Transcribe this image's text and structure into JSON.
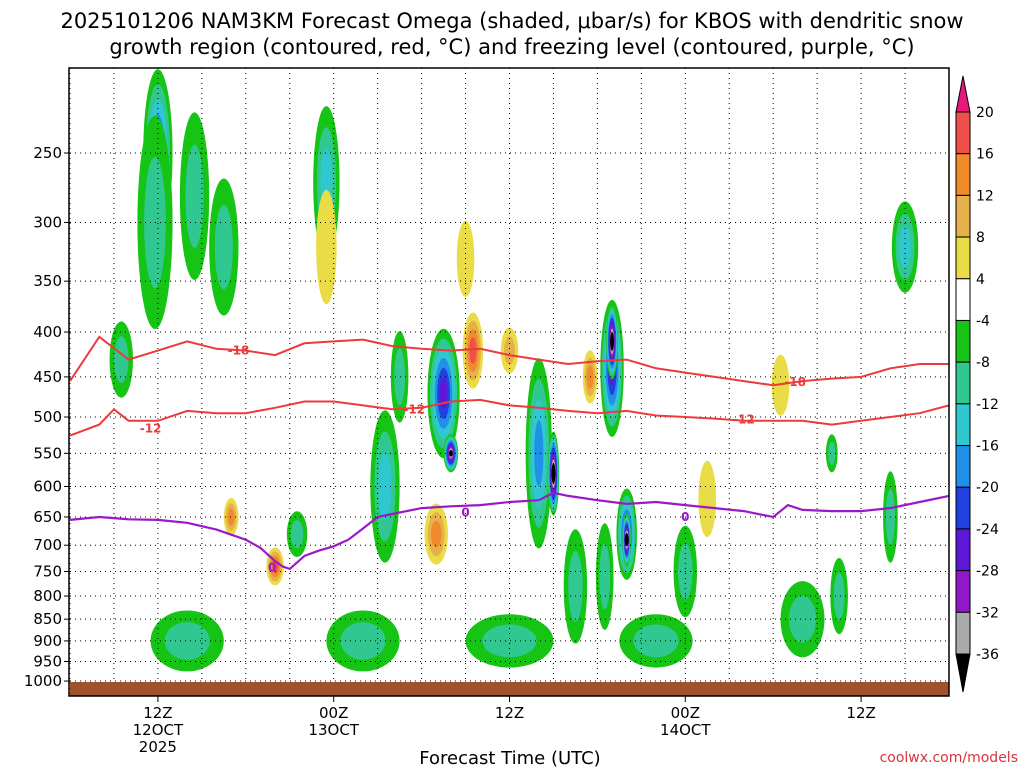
{
  "title_line1": "2025101206 NAM3KM Forecast Omega (shaded, μbar/s) for KBOS with dendritic snow",
  "title_line2": "growth region (contoured, red, °C) and freezing level (contoured, purple, °C)",
  "credit": "coolwx.com/models",
  "chart_data": {
    "type": "heatmap",
    "title": "2025101206 NAM3KM Forecast Omega (shaded, μbar/s) for KBOS with dendritic snow growth region (contoured, red, °C) and freezing level (contoured, purple, °C)",
    "xlabel": "Forecast Time (UTC)",
    "ylabel": "",
    "x_range_hours": [
      0,
      60
    ],
    "x_ticks": [
      {
        "hour": 6,
        "lines": [
          "12Z",
          "12OCT",
          "2025"
        ]
      },
      {
        "hour": 18,
        "lines": [
          "00Z",
          "13OCT"
        ]
      },
      {
        "hour": 30,
        "lines": [
          "12Z"
        ]
      },
      {
        "hour": 42,
        "lines": [
          "00Z",
          "14OCT"
        ]
      },
      {
        "hour": 54,
        "lines": [
          "12Z"
        ]
      }
    ],
    "y_axis": "pressure (hPa), log scale, inverted",
    "ylim": [
      200,
      1040
    ],
    "y_ticks": [
      "250",
      "300",
      "350",
      "400",
      "450",
      "500",
      "550",
      "600",
      "650",
      "700",
      "750",
      "800",
      "850",
      "900",
      "950",
      "1000"
    ],
    "grid": "dotted",
    "colorbar": {
      "labels": [
        "20",
        "16",
        "12",
        "8",
        "4",
        "-4",
        "-8",
        "-12",
        "-16",
        "-20",
        "-24",
        "-28",
        "-32",
        "-36"
      ],
      "levels": [
        24,
        20,
        16,
        12,
        8,
        4,
        -4,
        -8,
        -12,
        -16,
        -20,
        -24,
        -28,
        -32,
        -36,
        -40
      ],
      "colors": [
        "#e8187a",
        "#f0504a",
        "#f08a2a",
        "#e6b04a",
        "#eadc46",
        "#ffffff",
        "#16c416",
        "#30c890",
        "#30c8d0",
        "#2090e8",
        "#2040e0",
        "#6018d8",
        "#9018c8",
        "#aaaaaa",
        "#000000"
      ]
    },
    "omega_cells": [
      {
        "h": 6.0,
        "p": 250,
        "dh": 1.0,
        "dlp": 0.22,
        "v": -20
      },
      {
        "h": 5.8,
        "p": 300,
        "dh": 1.2,
        "dlp": 0.28,
        "v": -10
      },
      {
        "h": 8.5,
        "p": 280,
        "dh": 1.0,
        "dlp": 0.22,
        "v": -10
      },
      {
        "h": 10.5,
        "p": 320,
        "dh": 1.0,
        "dlp": 0.18,
        "v": -8
      },
      {
        "h": 3.5,
        "p": 430,
        "dh": 0.8,
        "dlp": 0.1,
        "v": -8
      },
      {
        "h": 17.5,
        "p": 270,
        "dh": 0.9,
        "dlp": 0.2,
        "v": -12
      },
      {
        "h": 17.5,
        "p": 320,
        "dh": 0.7,
        "dlp": 0.15,
        "v": 4
      },
      {
        "h": 11.0,
        "p": 650,
        "dh": 0.5,
        "dlp": 0.05,
        "v": 12
      },
      {
        "h": 14.0,
        "p": 740,
        "dh": 0.6,
        "dlp": 0.05,
        "v": 16
      },
      {
        "h": 15.5,
        "p": 680,
        "dh": 0.7,
        "dlp": 0.06,
        "v": -8
      },
      {
        "h": 21.5,
        "p": 600,
        "dh": 1.0,
        "dlp": 0.2,
        "v": -12
      },
      {
        "h": 22.5,
        "p": 450,
        "dh": 0.6,
        "dlp": 0.12,
        "v": -8
      },
      {
        "h": 25.5,
        "p": 470,
        "dh": 1.1,
        "dlp": 0.17,
        "v": -24
      },
      {
        "h": 26.0,
        "p": 550,
        "dh": 0.5,
        "dlp": 0.05,
        "v": -36
      },
      {
        "h": 25.0,
        "p": 680,
        "dh": 0.8,
        "dlp": 0.08,
        "v": 12
      },
      {
        "h": 27.5,
        "p": 420,
        "dh": 0.7,
        "dlp": 0.1,
        "v": 16
      },
      {
        "h": 27.0,
        "p": 330,
        "dh": 0.6,
        "dlp": 0.1,
        "v": 4
      },
      {
        "h": 30.0,
        "p": 420,
        "dh": 0.6,
        "dlp": 0.06,
        "v": 8
      },
      {
        "h": 32.0,
        "p": 550,
        "dh": 0.9,
        "dlp": 0.25,
        "v": -16
      },
      {
        "h": 33.0,
        "p": 580,
        "dh": 0.4,
        "dlp": 0.11,
        "v": -40
      },
      {
        "h": 35.5,
        "p": 450,
        "dh": 0.5,
        "dlp": 0.07,
        "v": 12
      },
      {
        "h": 37.0,
        "p": 440,
        "dh": 0.8,
        "dlp": 0.18,
        "v": -24
      },
      {
        "h": 37.0,
        "p": 410,
        "dh": 0.4,
        "dlp": 0.1,
        "v": -40
      },
      {
        "h": 38.0,
        "p": 680,
        "dh": 0.7,
        "dlp": 0.12,
        "v": -24
      },
      {
        "h": 38.0,
        "p": 690,
        "dh": 0.3,
        "dlp": 0.07,
        "v": -40
      },
      {
        "h": 34.5,
        "p": 780,
        "dh": 0.8,
        "dlp": 0.15,
        "v": -10
      },
      {
        "h": 36.5,
        "p": 760,
        "dh": 0.6,
        "dlp": 0.14,
        "v": -10
      },
      {
        "h": 42.0,
        "p": 750,
        "dh": 0.8,
        "dlp": 0.12,
        "v": -10
      },
      {
        "h": 48.5,
        "p": 460,
        "dh": 0.6,
        "dlp": 0.08,
        "v": 4
      },
      {
        "h": 57.0,
        "p": 320,
        "dh": 0.9,
        "dlp": 0.12,
        "v": -12
      },
      {
        "h": 56.0,
        "p": 650,
        "dh": 0.5,
        "dlp": 0.12,
        "v": -8
      },
      {
        "h": 52.5,
        "p": 800,
        "dh": 0.6,
        "dlp": 0.1,
        "v": -8
      },
      {
        "h": 50.0,
        "p": 850,
        "dh": 1.5,
        "dlp": 0.1,
        "v": -10
      },
      {
        "h": 8.0,
        "p": 900,
        "dh": 2.5,
        "dlp": 0.08,
        "v": -10
      },
      {
        "h": 20.0,
        "p": 900,
        "dh": 2.5,
        "dlp": 0.08,
        "v": -8
      },
      {
        "h": 30.0,
        "p": 900,
        "dh": 3.0,
        "dlp": 0.07,
        "v": -8
      },
      {
        "h": 40.0,
        "p": 900,
        "dh": 2.5,
        "dlp": 0.07,
        "v": -8
      },
      {
        "h": 43.5,
        "p": 620,
        "dh": 0.6,
        "dlp": 0.1,
        "v": 4
      },
      {
        "h": 52.0,
        "p": 550,
        "dh": 0.4,
        "dlp": 0.05,
        "v": -8
      }
    ],
    "dgz_contours": [
      {
        "label": "-18",
        "color": "#ee3a3a",
        "points": [
          [
            0,
            455
          ],
          [
            2,
            405
          ],
          [
            4,
            430
          ],
          [
            6,
            420
          ],
          [
            8,
            410
          ],
          [
            10,
            418
          ],
          [
            12,
            420
          ],
          [
            14,
            425
          ],
          [
            16,
            412
          ],
          [
            18,
            410
          ],
          [
            20,
            408
          ],
          [
            22,
            415
          ],
          [
            24,
            418
          ],
          [
            26,
            420
          ],
          [
            28,
            418
          ],
          [
            30,
            425
          ],
          [
            32,
            430
          ],
          [
            34,
            435
          ],
          [
            36,
            432
          ],
          [
            38,
            430
          ],
          [
            40,
            440
          ],
          [
            42,
            445
          ],
          [
            44,
            450
          ],
          [
            46,
            455
          ],
          [
            48,
            460
          ],
          [
            50,
            455
          ],
          [
            52,
            452
          ],
          [
            54,
            450
          ],
          [
            56,
            440
          ],
          [
            58,
            435
          ],
          [
            60,
            435
          ]
        ],
        "labels_at": [
          [
            11.5,
            420
          ],
          [
            49.5,
            456
          ]
        ]
      },
      {
        "label": "-12",
        "color": "#ee3a3a",
        "points": [
          [
            0,
            525
          ],
          [
            2,
            510
          ],
          [
            3,
            490
          ],
          [
            4,
            505
          ],
          [
            6,
            505
          ],
          [
            8,
            492
          ],
          [
            10,
            495
          ],
          [
            12,
            495
          ],
          [
            14,
            488
          ],
          [
            16,
            480
          ],
          [
            18,
            480
          ],
          [
            20,
            485
          ],
          [
            22,
            490
          ],
          [
            24,
            488
          ],
          [
            26,
            480
          ],
          [
            28,
            478
          ],
          [
            30,
            485
          ],
          [
            32,
            488
          ],
          [
            34,
            492
          ],
          [
            36,
            495
          ],
          [
            38,
            492
          ],
          [
            40,
            498
          ],
          [
            42,
            500
          ],
          [
            44,
            502
          ],
          [
            46,
            505
          ],
          [
            48,
            505
          ],
          [
            50,
            505
          ],
          [
            52,
            510
          ],
          [
            54,
            505
          ],
          [
            56,
            500
          ],
          [
            58,
            495
          ],
          [
            60,
            485
          ]
        ],
        "labels_at": [
          [
            5.5,
            515
          ],
          [
            23.5,
            490
          ],
          [
            46,
            503
          ]
        ]
      }
    ],
    "freezing_level": {
      "label": "0",
      "color": "#9a18c8",
      "points": [
        [
          0,
          655
        ],
        [
          2,
          650
        ],
        [
          4,
          654
        ],
        [
          6,
          655
        ],
        [
          8,
          660
        ],
        [
          10,
          672
        ],
        [
          12,
          690
        ],
        [
          13,
          705
        ],
        [
          14,
          730
        ],
        [
          14.5,
          740
        ],
        [
          15,
          745
        ],
        [
          16,
          720
        ],
        [
          17,
          710
        ],
        [
          18,
          702
        ],
        [
          19,
          690
        ],
        [
          20,
          670
        ],
        [
          21,
          650
        ],
        [
          22,
          645
        ],
        [
          24,
          635
        ],
        [
          26,
          632
        ],
        [
          28,
          630
        ],
        [
          30,
          625
        ],
        [
          32,
          622
        ],
        [
          33,
          610
        ],
        [
          34,
          615
        ],
        [
          36,
          622
        ],
        [
          38,
          628
        ],
        [
          40,
          625
        ],
        [
          42,
          630
        ],
        [
          44,
          635
        ],
        [
          46,
          640
        ],
        [
          48,
          650
        ],
        [
          49,
          630
        ],
        [
          50,
          638
        ],
        [
          52,
          640
        ],
        [
          54,
          640
        ],
        [
          56,
          635
        ],
        [
          58,
          625
        ],
        [
          60,
          615
        ]
      ],
      "labels_at": [
        [
          13.8,
          742
        ],
        [
          27,
          642
        ],
        [
          42,
          650
        ]
      ]
    }
  }
}
